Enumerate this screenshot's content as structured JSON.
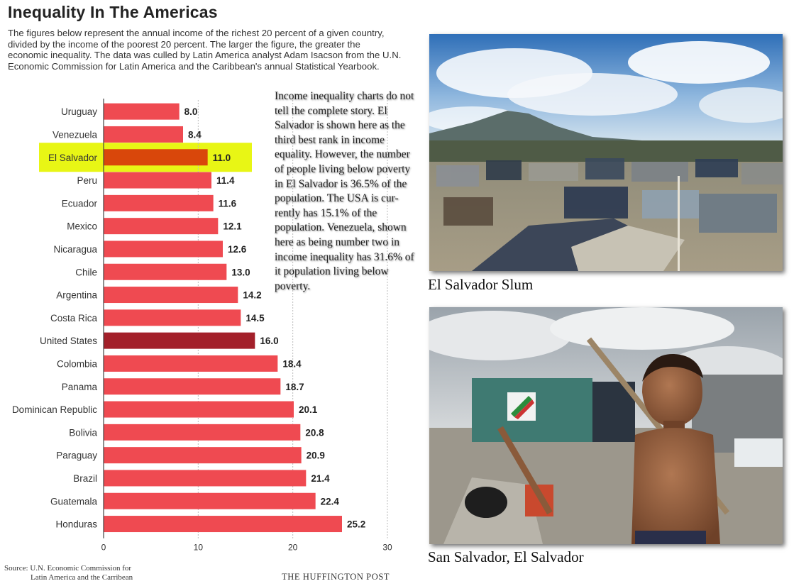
{
  "header": {
    "title": "Inequality In The Americas",
    "intro": "The figures below represent the annual income of the richest 20 percent of a given country, divided by the income of the poorest 20 percent. The larger the figure, the greater the economic inequality. The data was culled by Latin America analyst Adam Isacson from the U.N. Economic Commission for Latin America and the Caribbean's annual Statistical Yearbook."
  },
  "note": "Income inequality charts do not tell the complete story. El Salvador is shown here as the third best rank in income equality. However, the number of people living below poverty in El Salvador is 36.5% of the population. The USA is cur-rently has 15.1% of the population. Venezuela, shown here as being number two in income inequality has 31.6% of it population living below poverty.",
  "photos": [
    {
      "caption": "El Salvador Slum"
    },
    {
      "caption": "San Salvador, El Salvador"
    }
  ],
  "footer": {
    "source_line1": "Source: U.N. Economic Commission for",
    "source_line2": "Latin America and the Carribean",
    "credit": "THE HUFFINGTON POST"
  },
  "colors": {
    "bar": "#ef4a51",
    "highlight_bar": "#d9470b",
    "highlight_band": "#e8f615",
    "us_bar": "#a3202a",
    "grid": "#bbbbbb",
    "axis": "#444444"
  },
  "chart_data": {
    "type": "bar",
    "orientation": "horizontal",
    "title": "Inequality In The Americas",
    "xlabel": "",
    "ylabel": "",
    "xlim": [
      0,
      30
    ],
    "xticks": [
      0,
      10,
      20,
      30
    ],
    "grid": true,
    "highlight": "El Salvador",
    "emphasis": "United States",
    "categories": [
      "Uruguay",
      "Venezuela",
      "El Salvador",
      "Peru",
      "Ecuador",
      "Mexico",
      "Nicaragua",
      "Chile",
      "Argentina",
      "Costa Rica",
      "United States",
      "Colombia",
      "Panama",
      "Dominican Republic",
      "Bolivia",
      "Paraguay",
      "Brazil",
      "Guatemala",
      "Honduras"
    ],
    "values": [
      8.0,
      8.4,
      11.0,
      11.4,
      11.6,
      12.1,
      12.6,
      13.0,
      14.2,
      14.5,
      16.0,
      18.4,
      18.7,
      20.1,
      20.8,
      20.9,
      21.4,
      22.4,
      25.2
    ]
  }
}
